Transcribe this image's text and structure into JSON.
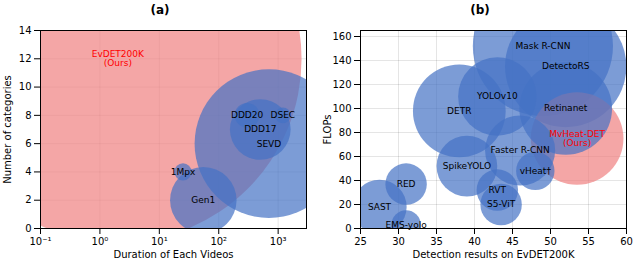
{
  "chart_data": [
    {
      "type": "scatter",
      "title": "(a)",
      "xlabel": "Duration of Each Videos",
      "ylabel": "Number of categories",
      "log": "x",
      "labels": [
        "EvDET200K\n(Ours)",
        "SEVD",
        "DDD17",
        "DDD20",
        "DSEC",
        "1Mpx",
        "Gen1"
      ],
      "x": [
        2.0,
        700,
        500,
        300,
        1200,
        25,
        55
      ],
      "values": [
        12,
        6,
        7,
        8,
        8,
        4,
        2
      ],
      "sizes": [
        55000,
        9000,
        1500,
        250,
        100,
        120,
        1800
      ],
      "colors": [
        "#f08080",
        "#4472c4",
        "#4472c4",
        "#4472c4",
        "#4472c4",
        "#4472c4",
        "#4472c4"
      ],
      "label_colors": [
        "red",
        "black",
        "black",
        "black",
        "black",
        "black",
        "black"
      ],
      "xlim": [
        0.1,
        3000
      ],
      "xticks": [
        {
          "value": 0.1,
          "label": "10⁻¹"
        },
        {
          "value": 1,
          "label": "10⁰"
        },
        {
          "value": 10,
          "label": "10¹"
        },
        {
          "value": 100,
          "label": "10²"
        },
        {
          "value": 1000,
          "label": "10³"
        }
      ],
      "ylim": [
        0,
        14
      ],
      "yticks": [
        0,
        2,
        4,
        6,
        8,
        10,
        12,
        14
      ],
      "grid": true
    },
    {
      "type": "scatter",
      "title": "(b)",
      "xlabel": "Detection results on EvDET200K",
      "ylabel": "FLOPs",
      "labels": [
        "MvHeat-DET\n(Ours)",
        "Mask R-CNN",
        "DetectoRS",
        "Retinanet",
        "YOLOv10",
        "DETR",
        "Faster R-CNN",
        "SpikeYOLO",
        "vHeat†",
        "RED",
        "SAST",
        "EMS-yolo",
        "RVT",
        "S5-ViT"
      ],
      "x": [
        53.5,
        49,
        52,
        52,
        43,
        38,
        46,
        39,
        48,
        31,
        27.5,
        31,
        43,
        43.5
      ],
      "values": [
        75,
        152,
        135,
        100,
        110,
        98,
        65,
        52,
        48,
        37,
        18,
        3,
        32,
        20
      ],
      "sizes": [
        3500,
        8000,
        6000,
        3500,
        2500,
        3500,
        2000,
        1500,
        600,
        700,
        1200,
        350,
        700,
        700
      ],
      "colors": [
        "#f08080",
        "#4472c4",
        "#4472c4",
        "#4472c4",
        "#4472c4",
        "#4472c4",
        "#4472c4",
        "#4472c4",
        "#4472c4",
        "#4472c4",
        "#4472c4",
        "#4472c4",
        "#4472c4",
        "#4472c4"
      ],
      "label_colors": [
        "red",
        "black",
        "black",
        "black",
        "black",
        "black",
        "black",
        "black",
        "black",
        "black",
        "black",
        "black",
        "black",
        "black"
      ],
      "xlim": [
        25,
        60
      ],
      "xticks": [
        25,
        30,
        35,
        40,
        45,
        50,
        55,
        60
      ],
      "ylim": [
        0,
        165
      ],
      "yticks": [
        0,
        20,
        40,
        60,
        80,
        100,
        120,
        140,
        160
      ],
      "grid": true
    }
  ]
}
